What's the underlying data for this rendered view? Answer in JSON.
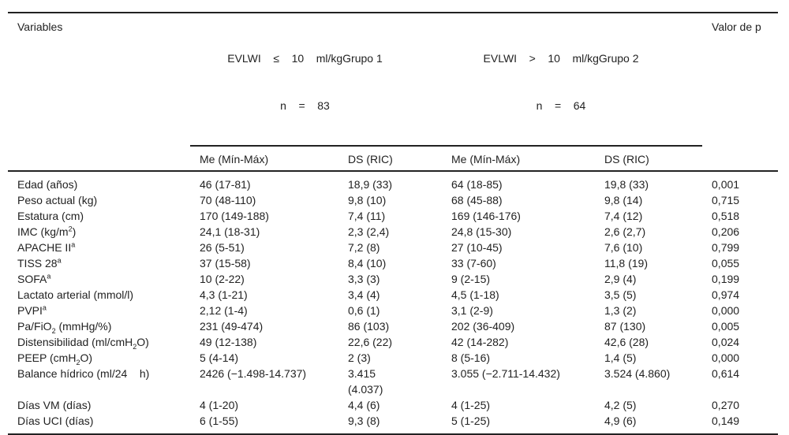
{
  "header": {
    "variables": "Variables",
    "group1": {
      "line1": "EVLWI    ≤    10    ml/kgGrupo 1",
      "line2": "n    =    83"
    },
    "group2": {
      "line1": "EVLWI    >    10    ml/kgGrupo 2",
      "line2": "n    =    64"
    },
    "pvalue": "Valor de p",
    "sub": [
      "Me (Mín-Máx)",
      "DS (RIC)",
      "Me (Mín-Máx)",
      "DS (RIC)"
    ]
  },
  "rows": [
    {
      "pre": "Edad (años)",
      "sup": "",
      "sub": "",
      "post": "",
      "g1me": "46 (17-81)",
      "g1ds": "18,9 (33)",
      "g2me": "64 (18-85)",
      "g2ds": "19,8 (33)",
      "p": "0,001"
    },
    {
      "pre": "Peso actual (kg)",
      "sup": "",
      "sub": "",
      "post": "",
      "g1me": "70 (48-110)",
      "g1ds": "9,8 (10)",
      "g2me": "68 (45-88)",
      "g2ds": "9,8 (14)",
      "p": "0,715"
    },
    {
      "pre": "Estatura (cm)",
      "sup": "",
      "sub": "",
      "post": "",
      "g1me": "170 (149-188)",
      "g1ds": "7,4 (11)",
      "g2me": "169 (146-176)",
      "g2ds": "7,4 (12)",
      "p": "0,518"
    },
    {
      "pre": "IMC (kg/m",
      "sup": "2",
      "sub": "",
      "post": ")",
      "g1me": "24,1 (18-31)",
      "g1ds": "2,3 (2,4)",
      "g2me": "24,8 (15-30)",
      "g2ds": "2,6 (2,7)",
      "p": "0,206"
    },
    {
      "pre": "APACHE II",
      "sup": "a",
      "sub": "",
      "post": "",
      "g1me": "26 (5-51)",
      "g1ds": "7,2 (8)",
      "g2me": "27 (10-45)",
      "g2ds": "7,6 (10)",
      "p": "0,799"
    },
    {
      "pre": "TISS 28",
      "sup": "a",
      "sub": "",
      "post": "",
      "g1me": "37 (15-58)",
      "g1ds": "8,4 (10)",
      "g2me": "33 (7-60)",
      "g2ds": "11,8 (19)",
      "p": "0,055"
    },
    {
      "pre": "SOFA",
      "sup": "a",
      "sub": "",
      "post": "",
      "g1me": "10 (2-22)",
      "g1ds": "3,3 (3)",
      "g2me": "9 (2-15)",
      "g2ds": "2,9 (4)",
      "p": "0,199"
    },
    {
      "pre": "Lactato arterial (mmol/l)",
      "sup": "",
      "sub": "",
      "post": "",
      "g1me": "4,3 (1-21)",
      "g1ds": "3,4 (4)",
      "g2me": "4,5 (1-18)",
      "g2ds": "3,5 (5)",
      "p": "0,974"
    },
    {
      "pre": "PVPI",
      "sup": "a",
      "sub": "",
      "post": "",
      "g1me": "2,12 (1-4)",
      "g1ds": "0,6 (1)",
      "g2me": "3,1 (2-9)",
      "g2ds": "1,3 (2)",
      "p": "0,000"
    },
    {
      "pre": "Pa/FiO",
      "sup": "",
      "sub": "2",
      "post": " (mmHg/%)",
      "g1me": "231 (49-474)",
      "g1ds": "86 (103)",
      "g2me": "202 (36-409)",
      "g2ds": "87 (130)",
      "p": "0,005"
    },
    {
      "pre": "Distensibilidad (ml/cmH",
      "sup": "",
      "sub": "2",
      "post": "O)",
      "g1me": "49 (12-138)",
      "g1ds": "22,6 (22)",
      "g2me": "42 (14-282)",
      "g2ds": "42,6 (28)",
      "p": "0,024"
    },
    {
      "pre": "PEEP (cmH",
      "sup": "",
      "sub": "2",
      "post": "O)",
      "g1me": "5 (4-14)",
      "g1ds": "2 (3)",
      "g2me": "8 (5-16)",
      "g2ds": "1,4 (5)",
      "p": "0,000"
    },
    {
      "pre": "Balance hídrico (ml/24    h)",
      "sup": "",
      "sub": "",
      "post": "",
      "g1me": "2426 (−1.498-14.737)",
      "g1ds": "3.415 (4.037)",
      "g2me": "3.055 (−2.711-14.432)",
      "g2ds": "3.524 (4.860)",
      "p": "0,614"
    },
    {
      "pre": "Días VM (días)",
      "sup": "",
      "sub": "",
      "post": "",
      "g1me": "4 (1-20)",
      "g1ds": "4,4 (6)",
      "g2me": "4 (1-25)",
      "g2ds": "4,2 (5)",
      "p": "0,270"
    },
    {
      "pre": "Días UCI (días)",
      "sup": "",
      "sub": "",
      "post": "",
      "g1me": "6 (1-55)",
      "g1ds": "9,3 (8)",
      "g2me": "5 (1-25)",
      "g2ds": "4,9 (6)",
      "p": "0,149"
    }
  ]
}
